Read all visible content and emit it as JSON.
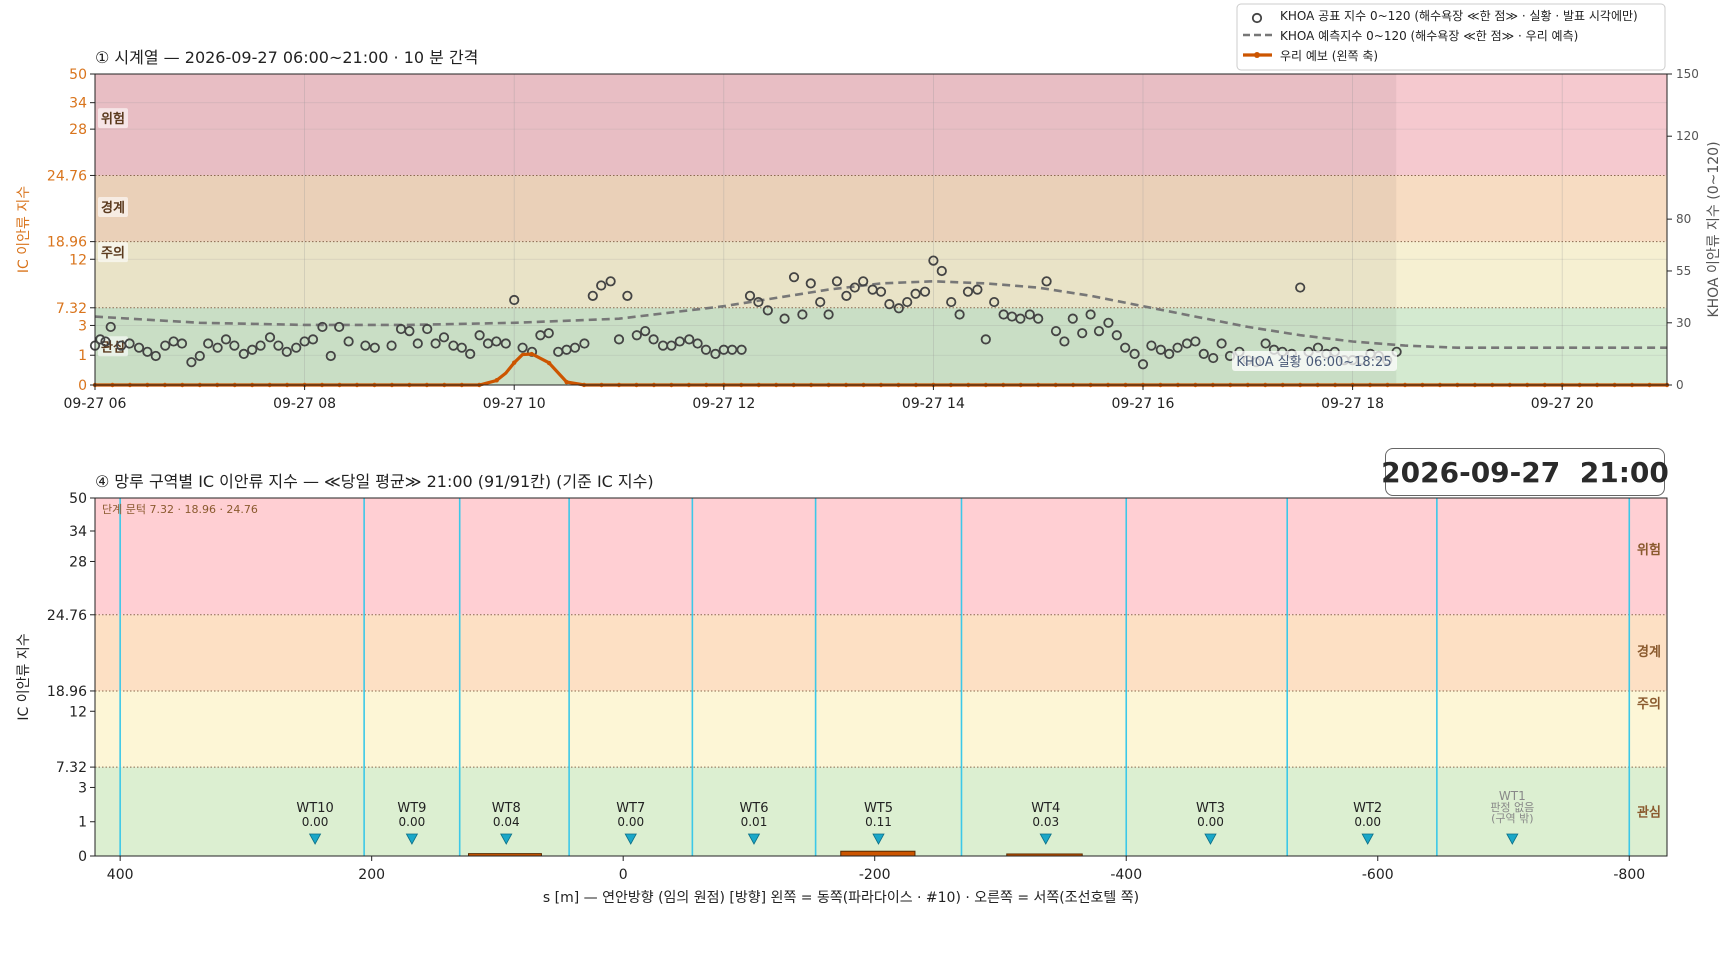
{
  "stamp": "2026-09-27  21:00",
  "colors": {
    "band_danger": "#f5c9cf",
    "band_warning": "#f7dcc2",
    "band_caution": "#f6f0d2",
    "band_interest": "#d4ead0",
    "band_danger_b": "#ffcfd3",
    "band_warning_b": "#fde0c4",
    "band_caution_b": "#fdf6d6",
    "band_interest_b": "#dcefd1",
    "ours": "#cc5500",
    "khoa_pts": "#444444",
    "khoa_fc": "#777777",
    "cyan": "#3cc8e8",
    "tri": "#1aa7c8",
    "orange_text": "#d9741c"
  },
  "chart_data": [
    {
      "type": "scatter",
      "title": "① 시계열 — 2026-09-27 06:00~21:00 · 10 분 간격",
      "ylabel": "IC 이안류 지수",
      "y2label": "KHOA 이안류 지수 (0~120)",
      "x_ticks": [
        "09-27 06",
        "09-27 08",
        "09-27 10",
        "09-27 12",
        "09-27 14",
        "09-27 16",
        "09-27 18",
        "09-27 20"
      ],
      "x_range_hours": [
        6,
        21
      ],
      "y_ticks": [
        "0",
        "1",
        "3",
        "7.32",
        "12",
        "18.96",
        "24.76",
        "28",
        "34",
        "50"
      ],
      "y2_ticks": [
        "0",
        "30",
        "55",
        "80",
        "120",
        "150"
      ],
      "y2_range": [
        0,
        150
      ],
      "band_labels": [
        "위험",
        "경계",
        "주의",
        "관심"
      ],
      "annotation": "KHOA 실황 06:00~18:25",
      "observed_window_hours": [
        6,
        18.4167
      ],
      "legend": [
        "KHOA 공표 지수 0~120 (해수욕장 ≪한 점≫ · 실황 · 발표 시각에만)",
        "KHOA 예측지수 0~120 (해수욕장 ≪한 점≫ · 우리 예측)",
        "우리 예보 (왼쪽 축)"
      ],
      "series": [
        {
          "name": "KHOA 공표 지수 0~120 (해수욕장 ≪한 점≫ · 실황 · 발표 시각에만)",
          "kind": "points",
          "axis": "right",
          "x": [
            6.0,
            6.05,
            6.1,
            6.15,
            6.25,
            6.33,
            6.42,
            6.5,
            6.58,
            6.67,
            6.75,
            6.83,
            6.92,
            7.0,
            7.08,
            7.17,
            7.25,
            7.33,
            7.42,
            7.5,
            7.58,
            7.67,
            7.75,
            7.83,
            7.92,
            8.0,
            8.08,
            8.17,
            8.25,
            8.33,
            8.42,
            8.58,
            8.67,
            8.83,
            8.92,
            9.0,
            9.08,
            9.17,
            9.25,
            9.33,
            9.42,
            9.5,
            9.58,
            9.67,
            9.75,
            9.83,
            9.92,
            10.0,
            10.08,
            10.17,
            10.25,
            10.33,
            10.42,
            10.5,
            10.58,
            10.67,
            10.75,
            10.83,
            10.92,
            11.0,
            11.08,
            11.17,
            11.25,
            11.33,
            11.42,
            11.5,
            11.58,
            11.67,
            11.75,
            11.83,
            11.92,
            12.0,
            12.08,
            12.17,
            12.25,
            12.33,
            12.42,
            12.58,
            12.67,
            12.75,
            12.83,
            12.92,
            13.0,
            13.08,
            13.17,
            13.25,
            13.33,
            13.42,
            13.5,
            13.58,
            13.67,
            13.75,
            13.83,
            13.92,
            14.0,
            14.08,
            14.17,
            14.25,
            14.33,
            14.42,
            14.5,
            14.58,
            14.67,
            14.75,
            14.83,
            14.92,
            15.0,
            15.08,
            15.17,
            15.25,
            15.33,
            15.42,
            15.5,
            15.58,
            15.67,
            15.75,
            15.83,
            15.92,
            16.0,
            16.08,
            16.17,
            16.25,
            16.33,
            16.42,
            16.5,
            16.58,
            16.67,
            16.75,
            16.83,
            16.92,
            17.0,
            17.08,
            17.17,
            17.25,
            17.33,
            17.42,
            17.5,
            17.58,
            17.67,
            17.75,
            17.83,
            17.92,
            18.0,
            18.08,
            18.17,
            18.25,
            18.33,
            18.42
          ],
          "y": [
            19,
            22,
            21,
            28,
            19,
            20,
            18,
            16,
            14,
            19,
            21,
            20,
            11,
            14,
            20,
            18,
            22,
            19,
            15,
            17,
            19,
            23,
            19,
            16,
            18,
            21,
            22,
            28,
            14,
            28,
            21,
            19,
            18,
            19,
            27,
            26,
            20,
            27,
            20,
            23,
            19,
            18,
            15,
            24,
            20,
            21,
            20,
            41,
            18,
            16,
            24,
            25,
            16,
            17,
            18,
            20,
            43,
            48,
            50,
            22,
            43,
            24,
            26,
            22,
            19,
            19,
            21,
            22,
            20,
            17,
            15,
            17,
            17,
            17,
            43,
            40,
            36,
            32,
            52,
            34,
            49,
            40,
            34,
            50,
            43,
            47,
            50,
            46,
            45,
            39,
            37,
            40,
            44,
            45,
            60,
            55,
            40,
            34,
            45,
            46,
            22,
            40,
            34,
            33,
            32,
            34,
            32,
            50,
            26,
            21,
            32,
            25,
            34,
            26,
            30,
            24,
            18,
            15,
            10,
            19,
            17,
            15,
            18,
            20,
            21,
            15,
            13,
            20,
            14,
            16,
            12,
            11,
            20,
            17,
            16,
            15,
            47,
            16,
            18,
            15,
            16,
            12,
            12,
            12,
            15,
            14,
            12,
            16
          ]
        },
        {
          "name": "KHOA 예측지수 0~120 (해수욕장 ≪한 점≫ · 우리 예측)",
          "kind": "dashed",
          "axis": "right",
          "x": [
            6,
            7,
            8,
            9,
            10,
            11,
            12,
            12.5,
            13,
            13.5,
            14,
            14.5,
            15,
            15.5,
            16,
            16.5,
            17,
            17.5,
            18,
            18.5,
            19,
            19.5,
            20,
            20.5,
            21
          ],
          "y": [
            33,
            30,
            29,
            29,
            30,
            32,
            38,
            42,
            46,
            49,
            50,
            49,
            47,
            43,
            38,
            33,
            28,
            24,
            21,
            19,
            18,
            18,
            18,
            18,
            18
          ]
        },
        {
          "name": "우리 예보 (왼쪽 축)",
          "kind": "line",
          "axis": "left",
          "x": [
            6,
            9.5,
            9.67,
            9.83,
            9.92,
            10.0,
            10.08,
            10.17,
            10.33,
            10.5,
            10.67,
            21
          ],
          "y": [
            0,
            0,
            0,
            0.15,
            0.4,
            0.75,
            1.05,
            1.08,
            0.75,
            0.1,
            0,
            0
          ]
        }
      ]
    },
    {
      "type": "bar",
      "title": "④ 망루 구역별 IC 이안류 지수 — ≪당일 평균≫ 21:00  (91/91칸)   (기준 IC 지수)",
      "xlabel": "s [m] — 연안방향 (임의 원점)     [방향] 왼쪽 = 동쪽(파라다이스 · #10) · 오른쪽 = 서쪽(조선호텔 쪽)",
      "ylabel": "IC 이안류 지수",
      "x_ticks": [
        "400",
        "200",
        "0",
        "-200",
        "-400",
        "-600",
        "-800"
      ],
      "x_range": [
        420,
        -830
      ],
      "y_ticks": [
        "0",
        "1",
        "3",
        "7.32",
        "12",
        "18.96",
        "24.76",
        "28",
        "34",
        "50"
      ],
      "band_labels": [
        "위험",
        "경계",
        "주의",
        "관심"
      ],
      "threshold_note": "단계 문턱 7.32 · 18.96 · 24.76",
      "boundaries": [
        400,
        206,
        130,
        43,
        -55,
        -153,
        -269,
        -400,
        -528,
        -647,
        -800
      ],
      "zones": [
        {
          "name": "WT10",
          "value": "0.00",
          "x": 245
        },
        {
          "name": "WT9",
          "value": "0.00",
          "x": 168
        },
        {
          "name": "WT8",
          "value": "0.04",
          "x": 93
        },
        {
          "name": "WT7",
          "value": "0.00",
          "x": -6
        },
        {
          "name": "WT6",
          "value": "0.01",
          "x": -104
        },
        {
          "name": "WT5",
          "value": "0.11",
          "x": -203
        },
        {
          "name": "WT4",
          "value": "0.03",
          "x": -336
        },
        {
          "name": "WT3",
          "value": "0.00",
          "x": -467
        },
        {
          "name": "WT2",
          "value": "0.00",
          "x": -592
        },
        {
          "name": "WT1",
          "value": "판정 없음",
          "value2": "(구역 밖)",
          "x": -707,
          "muted": true
        }
      ],
      "bars": [
        {
          "x0": 123,
          "x1": 65,
          "value": 0.04
        },
        {
          "x0": -173,
          "x1": -232,
          "value": 0.11
        },
        {
          "x0": -305,
          "x1": -365,
          "value": 0.03
        }
      ]
    }
  ]
}
